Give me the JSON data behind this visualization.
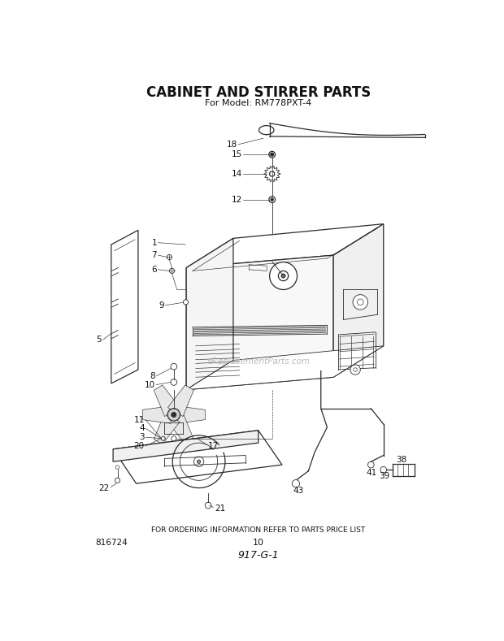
{
  "title": "CABINET AND STIRRER PARTS",
  "subtitle": "For Model: RM778PXT-4",
  "footer_text": "FOR ORDERING INFORMATION REFER TO PARTS PRICE LIST",
  "bottom_left": "816724",
  "bottom_center": "10",
  "bottom_italic": "917-G-1",
  "watermark": "eReplacementParts.com",
  "bg_color": "#ffffff",
  "line_color": "#2a2a2a",
  "label_color": "#111111"
}
